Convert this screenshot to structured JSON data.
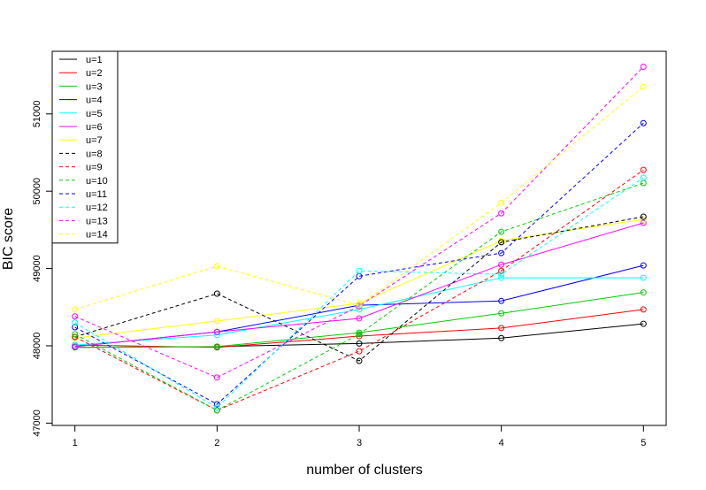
{
  "chart_data": {
    "type": "line",
    "x_label": "number of clusters",
    "y_label": "BIC score",
    "x": [
      1,
      2,
      3,
      4,
      5
    ],
    "xlim": [
      0.84,
      5.16
    ],
    "xticks": [
      1,
      2,
      3,
      4,
      5
    ],
    "ylim": [
      46970,
      51810
    ],
    "yticks": [
      47000,
      48000,
      49000,
      50000,
      51000
    ],
    "legend": "top-left",
    "markers": "open-circle",
    "series": [
      {
        "name": "u=1",
        "color": "#000000",
        "linestyle": "solid",
        "values": [
          47980,
          47990,
          48030,
          48100,
          48285
        ]
      },
      {
        "name": "u=2",
        "color": "#ff0000",
        "linestyle": "solid",
        "values": [
          48010,
          47980,
          48125,
          48230,
          48470
        ]
      },
      {
        "name": "u=3",
        "color": "#00cd00",
        "linestyle": "solid",
        "values": [
          47980,
          47990,
          48170,
          48420,
          48690
        ]
      },
      {
        "name": "u=4",
        "color": "#0000ff",
        "linestyle": "solid",
        "values": [
          47990,
          48180,
          48525,
          48580,
          49040
        ]
      },
      {
        "name": "u=5",
        "color": "#00ffff",
        "linestyle": "solid",
        "values": [
          48010,
          48140,
          48470,
          48880,
          48880
        ]
      },
      {
        "name": "u=6",
        "color": "#ff00ff",
        "linestyle": "solid",
        "values": [
          47990,
          48180,
          48355,
          49050,
          49590
        ]
      },
      {
        "name": "u=7",
        "color": "#ffff00",
        "linestyle": "solid",
        "values": [
          48100,
          48320,
          48550,
          49360,
          49635
        ]
      },
      {
        "name": "u=8",
        "color": "#000000",
        "linestyle": "dashed",
        "values": [
          48115,
          48675,
          47805,
          49340,
          49670
        ]
      },
      {
        "name": "u=9",
        "color": "#ff0000",
        "linestyle": "dashed",
        "values": [
          48115,
          47165,
          47930,
          48970,
          50275
        ]
      },
      {
        "name": "u=10",
        "color": "#00cd00",
        "linestyle": "dashed",
        "values": [
          48150,
          47165,
          48150,
          49475,
          50105
        ]
      },
      {
        "name": "u=11",
        "color": "#0000ff",
        "linestyle": "dashed",
        "values": [
          48240,
          47245,
          48900,
          49200,
          50880
        ]
      },
      {
        "name": "u=12",
        "color": "#00ffff",
        "linestyle": "dashed",
        "values": [
          48300,
          47200,
          48970,
          48925,
          50175
        ]
      },
      {
        "name": "u=13",
        "color": "#ff00ff",
        "linestyle": "dashed",
        "values": [
          48380,
          47590,
          48515,
          49715,
          51610
        ]
      },
      {
        "name": "u=14",
        "color": "#ffff00",
        "linestyle": "dashed",
        "values": [
          48470,
          49030,
          48525,
          49850,
          51350
        ]
      }
    ]
  }
}
